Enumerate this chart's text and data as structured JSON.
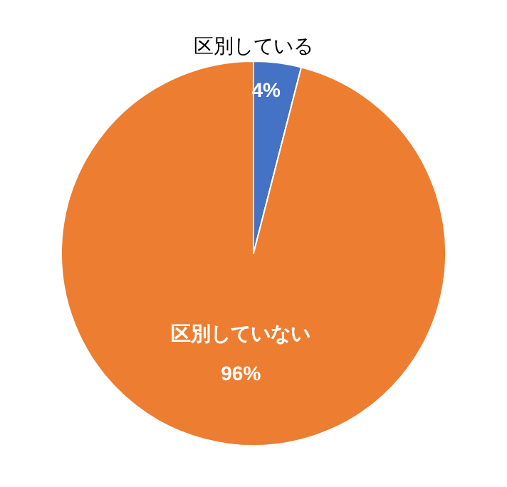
{
  "chart_data": {
    "type": "pie",
    "categories": [
      "区別している",
      "区別していない"
    ],
    "values": [
      4,
      96
    ],
    "colors": [
      "#4472c4",
      "#ed7d31"
    ],
    "data_labels": true,
    "value_labels": [
      "4%",
      "96%"
    ],
    "legend": false
  }
}
